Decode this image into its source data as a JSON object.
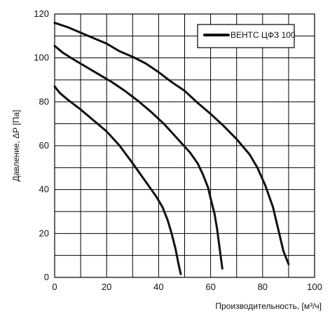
{
  "chart_data": {
    "type": "line",
    "title": "",
    "xlabel": "Производительность, [м³/ч]",
    "ylabel": "Давление, ΔP [Па]",
    "xlim": [
      0,
      100
    ],
    "ylim": [
      0,
      120
    ],
    "xticks": [
      0,
      20,
      40,
      60,
      80,
      100
    ],
    "yticks": [
      0,
      20,
      40,
      60,
      80,
      100,
      120
    ],
    "grid": true,
    "legend": {
      "placement": "top-right",
      "entries": [
        "ВЕНТС ЦФЗ 100"
      ]
    },
    "colors": {
      "line": "#111111",
      "grid": "#000000",
      "background": "#ffffff"
    },
    "series": [
      {
        "values": [
          [
            0,
            116
          ],
          [
            5,
            114
          ],
          [
            10,
            111.5
          ],
          [
            15,
            109
          ],
          [
            20,
            106.5
          ],
          [
            25,
            103
          ],
          [
            30,
            100.5
          ],
          [
            35,
            97.5
          ],
          [
            40,
            93.5
          ],
          [
            45,
            89
          ],
          [
            50,
            85
          ],
          [
            55,
            79.5
          ],
          [
            60,
            74.5
          ],
          [
            65,
            69
          ],
          [
            70,
            63
          ],
          [
            75,
            56
          ],
          [
            78,
            50
          ],
          [
            81,
            42
          ],
          [
            84,
            32
          ],
          [
            86,
            22
          ],
          [
            88,
            12
          ],
          [
            90,
            6
          ]
        ]
      },
      {
        "values": [
          [
            0,
            105.5
          ],
          [
            3,
            102.5
          ],
          [
            7,
            99.5
          ],
          [
            12,
            96
          ],
          [
            17,
            92.5
          ],
          [
            22,
            89
          ],
          [
            27,
            85
          ],
          [
            32,
            80.5
          ],
          [
            37,
            75.5
          ],
          [
            42,
            70
          ],
          [
            47,
            63.5
          ],
          [
            52,
            57
          ],
          [
            55,
            52
          ],
          [
            57,
            47
          ],
          [
            59,
            41
          ],
          [
            60,
            36
          ],
          [
            61.5,
            29
          ],
          [
            62.5,
            22
          ],
          [
            63.5,
            13
          ],
          [
            64.5,
            4
          ]
        ]
      },
      {
        "values": [
          [
            0,
            87
          ],
          [
            2,
            84
          ],
          [
            5,
            81
          ],
          [
            10,
            76.5
          ],
          [
            15,
            71.5
          ],
          [
            20,
            66.5
          ],
          [
            25,
            60
          ],
          [
            30,
            52
          ],
          [
            33,
            47
          ],
          [
            36,
            42
          ],
          [
            39,
            37
          ],
          [
            41.5,
            32
          ],
          [
            43.5,
            26
          ],
          [
            45,
            20
          ],
          [
            46.5,
            13
          ],
          [
            47.5,
            7
          ],
          [
            48.5,
            1.5
          ]
        ]
      }
    ]
  }
}
